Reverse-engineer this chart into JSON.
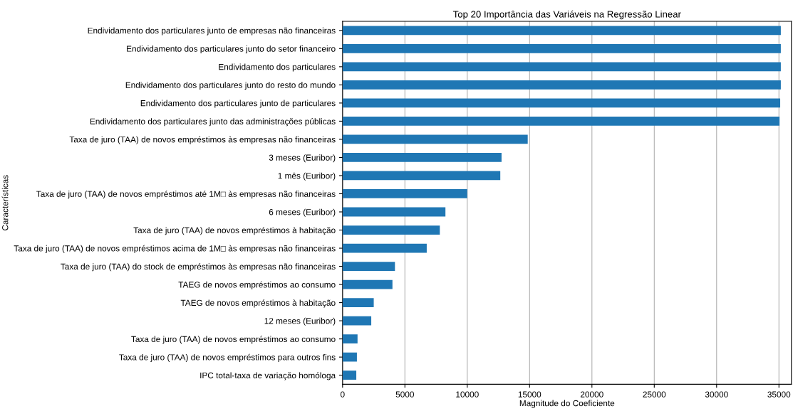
{
  "chart_data": {
    "type": "bar",
    "orientation": "horizontal",
    "title": "Top 20 Importância das Variáveis na Regressão Linear",
    "xlabel": "Magnitude do Coeficiente",
    "ylabel": "Características",
    "categories": [
      "Endividamento dos particulares junto de empresas não financeiras",
      "Endividamento dos particulares junto do setor financeiro",
      "Endividamento dos particulares",
      "Endividamento dos particulares junto do resto do mundo",
      "Endividamento dos particulares junto de particulares",
      "Endividamento dos particulares junto das administrações públicas",
      "Taxa de juro (TAA) de novos empréstimos às empresas não financeiras",
      "3 meses (Euribor)",
      "1 mês (Euribor)",
      "Taxa de juro (TAA) de novos empréstimos até 1M□ às empresas não financeiras",
      "6 meses (Euribor)",
      "Taxa de juro (TAA) de novos empréstimos à habitação",
      "Taxa de juro (TAA) de novos empréstimos acima de 1M□ às empresas não financeiras",
      "Taxa de juro (TAA) do stock de empréstimos às empresas não financeiras",
      "TAEG de novos empréstimos ao consumo",
      "TAEG de novos empréstimos à habitação",
      "12 meses (Euribor)",
      "Taxa de juro (TAA) de novos empréstimos ao consumo",
      "Taxa de juro (TAA) de novos empréstimos para outros fins",
      "IPC total-taxa de variação homóloga"
    ],
    "values": [
      35150,
      35150,
      35150,
      35150,
      35100,
      35050,
      14850,
      12750,
      12650,
      10000,
      8250,
      7800,
      6750,
      4200,
      4000,
      2500,
      2300,
      1200,
      1150,
      1100
    ],
    "color": "#1f77b4",
    "xlim": [
      0,
      36000
    ],
    "xticks": [
      0,
      5000,
      10000,
      15000,
      20000,
      25000,
      30000,
      35000
    ],
    "grid": "x"
  }
}
